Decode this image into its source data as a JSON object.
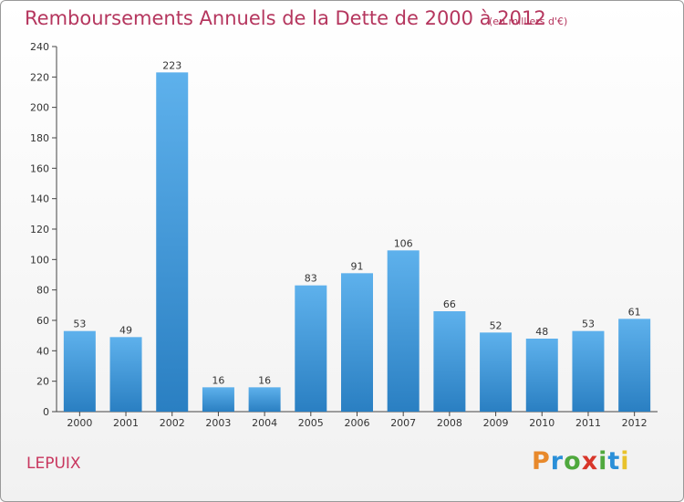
{
  "title": "Remboursements Annuels de la Dette de 2000 à 2012",
  "subtitle": "(en milliers d'€)",
  "place": "LEPUIX",
  "logo": {
    "text": "Proxiti",
    "letters": [
      "P",
      "r",
      "o",
      "x",
      "i",
      "t",
      "i"
    ],
    "colors": [
      "#e8892b",
      "#2a8fd8",
      "#4fa83d",
      "#d8362a",
      "#4fa83d",
      "#2a8fd8",
      "#e8c22b"
    ]
  },
  "colors": {
    "bar_light": "#5eb1ec",
    "bar_dark": "#2a7fc2",
    "title": "#b5365e"
  },
  "chart_data": {
    "type": "bar",
    "title": "Remboursements Annuels de la Dette de 2000 à 2012",
    "subtitle": "(en milliers d'€)",
    "categories": [
      "2000",
      "2001",
      "2002",
      "2003",
      "2004",
      "2005",
      "2006",
      "2007",
      "2008",
      "2009",
      "2010",
      "2011",
      "2012"
    ],
    "values": [
      53,
      49,
      223,
      16,
      16,
      83,
      91,
      106,
      66,
      52,
      48,
      53,
      61
    ],
    "ylim": [
      0,
      240
    ],
    "yticks": [
      0,
      20,
      40,
      60,
      80,
      100,
      120,
      140,
      160,
      180,
      200,
      220,
      240
    ],
    "grid": false
  }
}
